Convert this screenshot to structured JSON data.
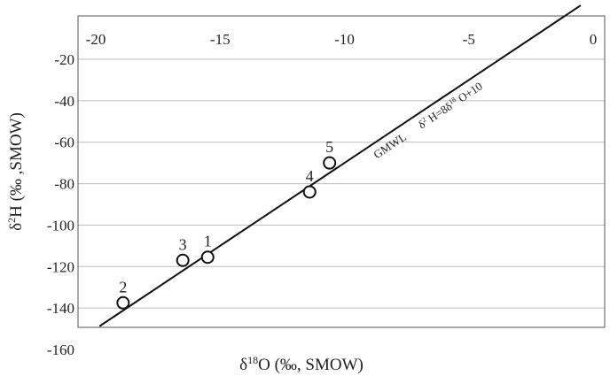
{
  "chart_data": {
    "type": "scatter",
    "xlabel": "δ18O (‰, SMOW)",
    "xlabel_parts": {
      "delta": "δ",
      "sup": "18",
      "rest": "O (‰, SMOW)"
    },
    "ylabel": "δ2H (‰ ,SMOW)",
    "ylabel_parts": {
      "delta": "δ",
      "sup": "2",
      "rest": "H (‰ ,SMOW)"
    },
    "xlim": [
      -20,
      0
    ],
    "ylim": [
      -160,
      -20
    ],
    "x_ticks": [
      -20,
      -15,
      -10,
      -5,
      0
    ],
    "y_ticks": [
      -20,
      -40,
      -60,
      -80,
      -100,
      -120,
      -140,
      -160
    ],
    "x_axis_position": "top",
    "grid": "horizontal",
    "series": [
      {
        "points": [
          {
            "label": "1",
            "x": -15.5,
            "y": -115.5
          },
          {
            "label": "2",
            "x": -18.9,
            "y": -137.5
          },
          {
            "label": "3",
            "x": -16.5,
            "y": -117
          },
          {
            "label": "4",
            "x": -11.4,
            "y": -84
          },
          {
            "label": "5",
            "x": -10.6,
            "y": -70
          }
        ]
      }
    ],
    "reference_line": {
      "name": "GMWL",
      "equation": "δ2 H=8δ18 O+10",
      "equation_parts": {
        "d1": "δ",
        "s1": "2",
        "m1": " H=8δ",
        "s2": "18",
        "m2": " O+10"
      },
      "slope": 8,
      "intercept": 10,
      "x_range": [
        -19.85,
        -0.5
      ]
    }
  }
}
